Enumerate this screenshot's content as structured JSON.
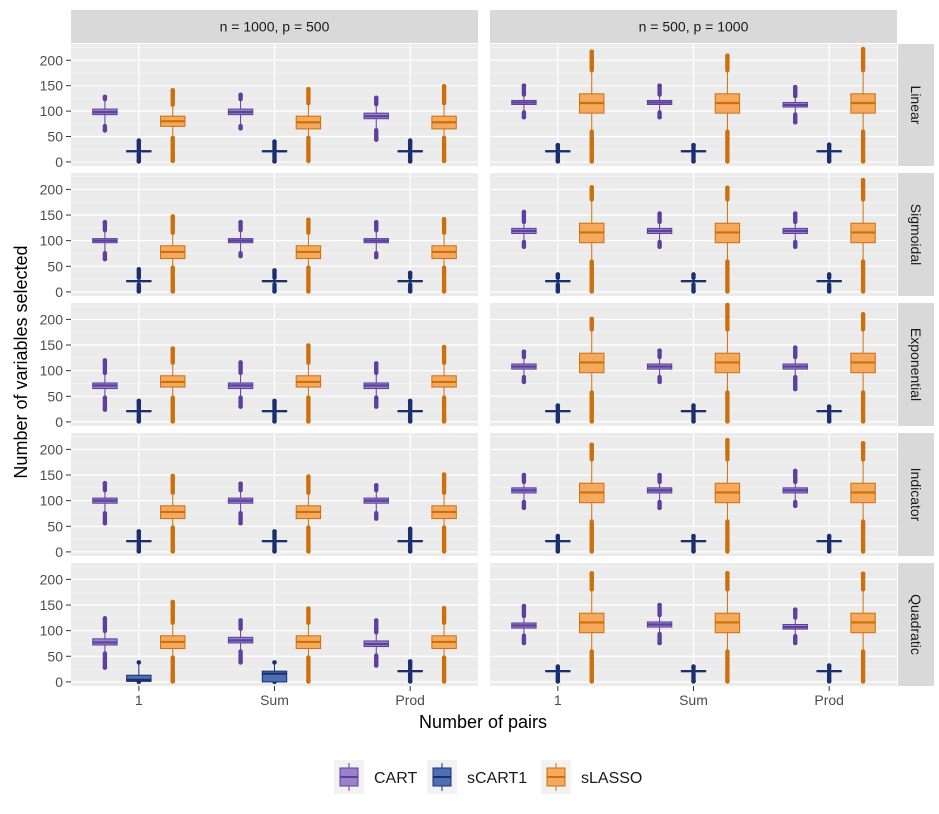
{
  "chart_data": {
    "type": "boxplot",
    "facet_columns": [
      "n = 1000, p = 500",
      "n = 500, p = 1000"
    ],
    "facet_rows": [
      "Linear",
      "Sigmoidal",
      "Exponential",
      "Indicator",
      "Quadratic"
    ],
    "categories": [
      "1",
      "Sum",
      "Prod"
    ],
    "xlabel": "Number of pairs",
    "ylabel": "Number of variables selected",
    "ylim": [
      -8,
      232
    ],
    "yticks": [
      0,
      50,
      100,
      150,
      200
    ],
    "legend_position": "bottom",
    "series": [
      {
        "name": "CART",
        "fill": "#9a82c8",
        "line": "#5e3f9e"
      },
      {
        "name": "sCART1",
        "fill": "#4e6fb5",
        "line": "#1b2f6e"
      },
      {
        "name": "sLASSO",
        "fill": "#f4a95c",
        "line": "#cc700e"
      }
    ],
    "boxes": [
      [
        [
          [
            [
              73,
              93,
              98,
              104,
              121,
              128,
              62
            ],
            [
              19,
              20,
              21,
              22,
              23,
              42,
              1
            ],
            [
              50,
              70,
              80,
              90,
              110,
              141,
              2
            ]
          ],
          [
            [
              73,
              93,
              98,
              104,
              121,
              132,
              66
            ],
            [
              19,
              20,
              21,
              22,
              23,
              40,
              1
            ],
            [
              50,
              65,
              78,
              90,
              113,
              143,
              2
            ]
          ],
          [
            [
              65,
              85,
              90,
              96,
              111,
              126,
              44
            ],
            [
              19,
              20,
              21,
              22,
              23,
              42,
              1
            ],
            [
              50,
              65,
              78,
              90,
              113,
              149,
              2
            ]
          ]
        ],
        [
          [
            [
              100,
              113,
              117,
              121,
              130,
              150,
              88
            ],
            [
              19,
              20,
              21,
              22,
              23,
              33,
              1
            ],
            [
              62,
              96,
              116,
              134,
              178,
              217,
              1
            ]
          ],
          [
            [
              100,
              113,
              117,
              121,
              130,
              150,
              88
            ],
            [
              19,
              20,
              21,
              22,
              23,
              33,
              1
            ],
            [
              62,
              96,
              116,
              134,
              178,
              209,
              1
            ]
          ],
          [
            [
              96,
              108,
              112,
              117,
              127,
              147,
              78
            ],
            [
              19,
              20,
              21,
              22,
              23,
              34,
              1
            ],
            [
              62,
              96,
              116,
              134,
              178,
              222,
              1
            ]
          ]
        ]
      ],
      [
        [
          [
            [
              78,
              96,
              100,
              104,
              118,
              136,
              64
            ],
            [
              17,
              20,
              21,
              22,
              25,
              44,
              1
            ],
            [
              50,
              65,
              78,
              90,
              113,
              147,
              1
            ]
          ],
          [
            [
              78,
              96,
              100,
              104,
              118,
              136,
              70
            ],
            [
              17,
              20,
              21,
              22,
              25,
              42,
              1
            ],
            [
              50,
              65,
              78,
              90,
              113,
              141,
              1
            ]
          ],
          [
            [
              78,
              96,
              100,
              104,
              118,
              136,
              68
            ],
            [
              17,
              20,
              21,
              22,
              25,
              37,
              1
            ],
            [
              50,
              65,
              78,
              90,
              113,
              142,
              1
            ]
          ]
        ],
        [
          [
            [
              100,
              114,
              119,
              124,
              134,
              156,
              88
            ],
            [
              17,
              20,
              21,
              22,
              25,
              34,
              1
            ],
            [
              62,
              96,
              116,
              134,
              178,
              204,
              1
            ]
          ],
          [
            [
              100,
              114,
              119,
              124,
              134,
              153,
              88
            ],
            [
              17,
              20,
              21,
              22,
              25,
              34,
              1
            ],
            [
              62,
              96,
              116,
              134,
              178,
              203,
              1
            ]
          ],
          [
            [
              100,
              114,
              119,
              124,
              134,
              153,
              88
            ],
            [
              17,
              20,
              21,
              22,
              25,
              34,
              1
            ],
            [
              62,
              96,
              116,
              134,
              178,
              218,
              1
            ]
          ]
        ]
      ],
      [
        [
          [
            [
              50,
              65,
              71,
              76,
              93,
              120,
              24
            ],
            [
              19,
              20,
              21,
              22,
              23,
              41,
              1
            ],
            [
              50,
              68,
              78,
              90,
              113,
              143,
              1
            ]
          ],
          [
            [
              50,
              65,
              71,
              76,
              93,
              116,
              30
            ],
            [
              19,
              20,
              21,
              22,
              23,
              41,
              1
            ],
            [
              50,
              68,
              78,
              90,
              113,
              149,
              1
            ]
          ],
          [
            [
              50,
              65,
              71,
              76,
              93,
              114,
              30
            ],
            [
              19,
              20,
              21,
              22,
              23,
              41,
              1
            ],
            [
              50,
              68,
              78,
              90,
              113,
              146,
              1
            ]
          ]
        ],
        [
          [
            [
              90,
              103,
              108,
              113,
              124,
              137,
              78
            ],
            [
              19,
              20,
              21,
              22,
              23,
              32,
              1
            ],
            [
              60,
              96,
              116,
              134,
              178,
              201,
              1
            ]
          ],
          [
            [
              90,
              103,
              108,
              113,
              124,
              139,
              78
            ],
            [
              19,
              20,
              21,
              22,
              23,
              32,
              1
            ],
            [
              60,
              96,
              116,
              134,
              178,
              228,
              1
            ]
          ],
          [
            [
              90,
              103,
              108,
              113,
              124,
              145,
              64
            ],
            [
              19,
              20,
              21,
              22,
              23,
              30,
              1
            ],
            [
              60,
              96,
              116,
              134,
              178,
              210,
              1
            ]
          ]
        ]
      ],
      [
        [
          [
            [
              78,
              95,
              100,
              105,
              118,
              134,
              56
            ],
            [
              19,
              20,
              21,
              22,
              23,
              40,
              1
            ],
            [
              50,
              65,
              78,
              90,
              113,
              148,
              1
            ]
          ],
          [
            [
              78,
              95,
              100,
              105,
              118,
              133,
              56
            ],
            [
              19,
              20,
              21,
              22,
              23,
              40,
              1
            ],
            [
              50,
              65,
              78,
              90,
              113,
              147,
              1
            ]
          ],
          [
            [
              78,
              95,
              100,
              105,
              118,
              130,
              65
            ],
            [
              19,
              20,
              21,
              22,
              23,
              45,
              1
            ],
            [
              50,
              65,
              78,
              90,
              113,
              151,
              1
            ]
          ]
        ],
        [
          [
            [
              100,
              115,
              120,
              125,
              134,
              150,
              86
            ],
            [
              19,
              20,
              21,
              22,
              23,
              31,
              1
            ],
            [
              62,
              96,
              116,
              134,
              178,
              209,
              1
            ]
          ],
          [
            [
              100,
              115,
              120,
              125,
              134,
              150,
              86
            ],
            [
              19,
              20,
              21,
              22,
              23,
              31,
              1
            ],
            [
              62,
              96,
              116,
              134,
              178,
              218,
              1
            ]
          ],
          [
            [
              100,
              115,
              120,
              125,
              134,
              158,
              90
            ],
            [
              19,
              20,
              21,
              22,
              23,
              31,
              1
            ],
            [
              62,
              96,
              116,
              134,
              178,
              212,
              1
            ]
          ]
        ]
      ],
      [
        [
          [
            [
              58,
              72,
              77,
              84,
              97,
              124,
              28
            ],
            [
              0,
              1,
              4,
              13,
              38,
              38,
              0
            ],
            [
              50,
              65,
              78,
              90,
              113,
              156,
              1
            ]
          ],
          [
            [
              62,
              76,
              81,
              87,
              101,
              120,
              38
            ],
            [
              0,
              0,
              16,
              21,
              38,
              38,
              0
            ],
            [
              50,
              65,
              78,
              90,
              113,
              143,
              1
            ]
          ],
          [
            [
              54,
              69,
              74,
              80,
              94,
              120,
              32
            ],
            [
              19,
              20,
              21,
              22,
              23,
              40,
              1
            ],
            [
              50,
              65,
              78,
              90,
              113,
              144,
              1
            ]
          ]
        ],
        [
          [
            [
              93,
              105,
              110,
              115,
              126,
              148,
              76
            ],
            [
              19,
              20,
              21,
              22,
              23,
              30,
              1
            ],
            [
              62,
              96,
              116,
              134,
              178,
              212,
              1
            ]
          ],
          [
            [
              96,
              107,
              112,
              117,
              128,
              150,
              76
            ],
            [
              19,
              20,
              21,
              22,
              23,
              30,
              1
            ],
            [
              62,
              96,
              116,
              134,
              178,
              212,
              1
            ]
          ],
          [
            [
              92,
              103,
              107,
              112,
              123,
              141,
              76
            ],
            [
              19,
              20,
              21,
              22,
              23,
              32,
              1
            ],
            [
              62,
              96,
              116,
              134,
              178,
              211,
              1
            ]
          ]
        ]
      ]
    ]
  }
}
